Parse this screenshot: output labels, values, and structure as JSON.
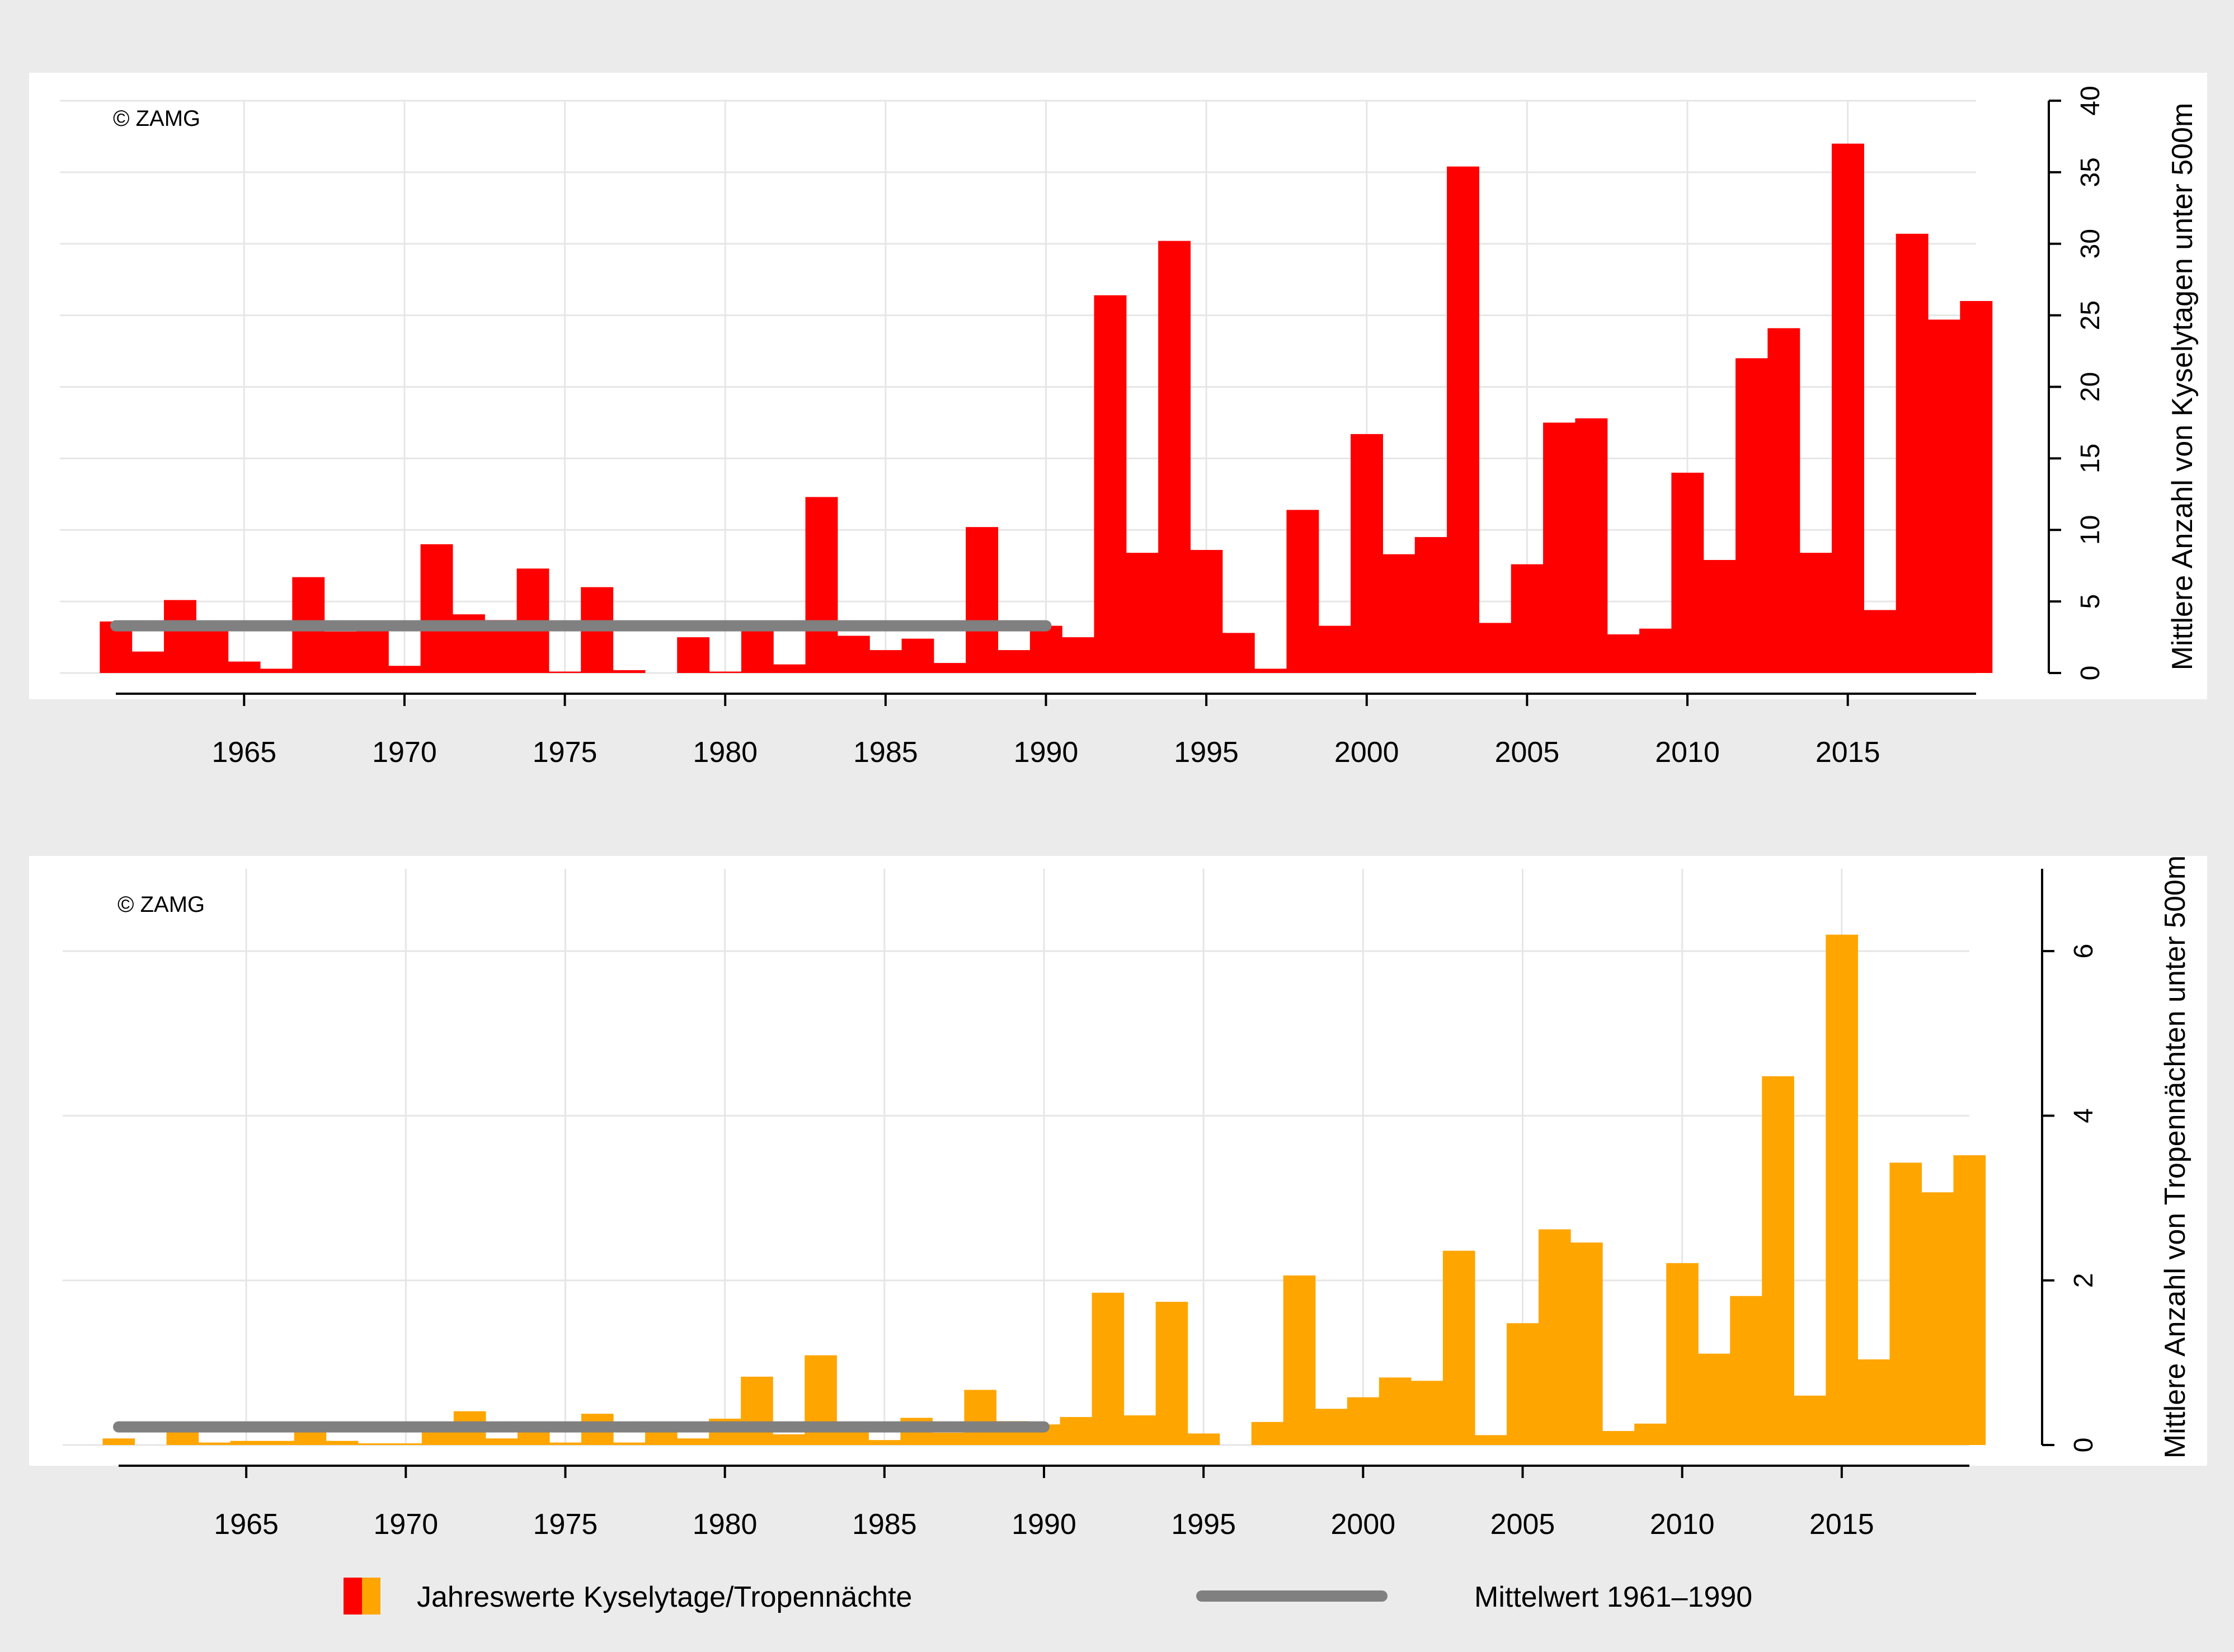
{
  "colors": {
    "outer_bg": "#ebebeb",
    "panel_bg": "#ffffff",
    "grid": "#e6e6e6",
    "kyselytage": "#ff0000",
    "tropennaechte": "#ffa500",
    "mean_line": "#808080",
    "axis": "#000000"
  },
  "chart_data": [
    {
      "type": "bar",
      "copyright": "© ZAMG",
      "ylabel": "Mittlere Anzahl von Kyselytagen unter 500m",
      "ylim": [
        0,
        40
      ],
      "yticks": [
        0,
        5,
        10,
        15,
        20,
        25,
        30,
        35,
        40
      ],
      "xlim": [
        1961,
        2019
      ],
      "xticks": [
        1965,
        1970,
        1975,
        1980,
        1985,
        1990,
        1995,
        2000,
        2005,
        2010,
        2015
      ],
      "grid": true,
      "bar_color": "#ff0000",
      "years": [
        1961,
        1962,
        1963,
        1964,
        1965,
        1966,
        1967,
        1968,
        1969,
        1970,
        1971,
        1972,
        1973,
        1974,
        1975,
        1976,
        1977,
        1978,
        1979,
        1980,
        1981,
        1982,
        1983,
        1984,
        1985,
        1986,
        1987,
        1988,
        1989,
        1990,
        1991,
        1992,
        1993,
        1994,
        1995,
        1996,
        1997,
        1998,
        1999,
        2000,
        2001,
        2002,
        2003,
        2004,
        2005,
        2006,
        2007,
        2008,
        2009,
        2010,
        2011,
        2012,
        2013,
        2014,
        2015,
        2016,
        2017,
        2018,
        2019
      ],
      "values": [
        3.6,
        1.5,
        5.1,
        3.1,
        0.8,
        0.3,
        6.7,
        2.9,
        3.1,
        0.5,
        9.0,
        4.1,
        3.7,
        7.3,
        0.1,
        6.0,
        0.2,
        0.0,
        2.5,
        0.1,
        3.1,
        0.6,
        12.3,
        2.6,
        1.6,
        2.4,
        0.7,
        10.2,
        1.6,
        3.3,
        2.5,
        26.4,
        8.4,
        30.2,
        8.6,
        2.8,
        0.3,
        11.4,
        3.3,
        16.7,
        8.3,
        9.5,
        35.4,
        3.5,
        7.6,
        17.5,
        17.8,
        2.7,
        3.1,
        14.0,
        7.9,
        22.0,
        24.1,
        8.4,
        37.0,
        4.4,
        30.7,
        24.7,
        26.0
      ],
      "mean_1961_1990": 3.3
    },
    {
      "type": "bar",
      "copyright": "© ZAMG",
      "ylabel": "Mittlere Anzahl von Tropennächten unter 500m",
      "ylim": [
        0,
        7
      ],
      "yticks": [
        0,
        2,
        4,
        6
      ],
      "xlim": [
        1961,
        2019
      ],
      "xticks": [
        1965,
        1970,
        1975,
        1980,
        1985,
        1990,
        1995,
        2000,
        2005,
        2010,
        2015
      ],
      "grid": true,
      "bar_color": "#ffa500",
      "years": [
        1961,
        1962,
        1963,
        1964,
        1965,
        1966,
        1967,
        1968,
        1969,
        1970,
        1971,
        1972,
        1973,
        1974,
        1975,
        1976,
        1977,
        1978,
        1979,
        1980,
        1981,
        1982,
        1983,
        1984,
        1985,
        1986,
        1987,
        1988,
        1989,
        1990,
        1991,
        1992,
        1993,
        1994,
        1995,
        1996,
        1997,
        1998,
        1999,
        2000,
        2001,
        2002,
        2003,
        2004,
        2005,
        2006,
        2007,
        2008,
        2009,
        2010,
        2011,
        2012,
        2013,
        2014,
        2015,
        2016,
        2017,
        2018,
        2019
      ],
      "values": [
        0.08,
        0.0,
        0.2,
        0.03,
        0.05,
        0.05,
        0.2,
        0.05,
        0.02,
        0.02,
        0.2,
        0.41,
        0.08,
        0.18,
        0.03,
        0.38,
        0.03,
        0.25,
        0.08,
        0.32,
        0.83,
        0.13,
        1.09,
        0.23,
        0.06,
        0.33,
        0.15,
        0.67,
        0.29,
        0.25,
        0.34,
        1.85,
        0.36,
        1.74,
        0.14,
        0.0,
        0.28,
        2.06,
        0.44,
        0.58,
        0.82,
        0.78,
        2.36,
        0.12,
        1.48,
        2.62,
        2.46,
        0.17,
        0.26,
        2.21,
        1.11,
        1.81,
        4.48,
        0.6,
        6.2,
        1.04,
        3.43,
        3.07,
        3.52
      ],
      "mean_1961_1990": 0.22
    }
  ],
  "legend": {
    "bars_label": "Jahreswerte Kyselytage/Tropennächte",
    "line_label": "Mittelwert 1961–1990"
  }
}
